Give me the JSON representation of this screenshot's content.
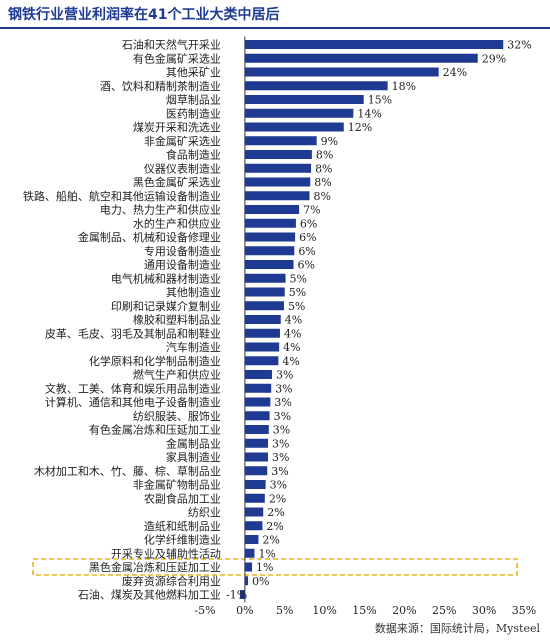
{
  "title": "钢铁行业营业利润率在41个工业大类中居后",
  "source": "数据来源：国际统计局，Mysteel",
  "colors": {
    "bar": "#1f3a93",
    "title": "#1f3a93",
    "highlight": "#e8b422"
  },
  "chart_data": {
    "type": "bar",
    "orientation": "horizontal",
    "title": "钢铁行业营业利润率在41个工业大类中居后",
    "xlabel": "",
    "ylabel": "",
    "xlim": [
      -5,
      35
    ],
    "xticks": [
      "-5%",
      "0%",
      "5%",
      "10%",
      "15%",
      "20%",
      "25%",
      "30%",
      "35%"
    ],
    "grid": false,
    "highlighted_category": "黑色金属冶炼和压延加工业",
    "categories": [
      "石油和天然气开采业",
      "有色金属矿采选业",
      "其他采矿业",
      "酒、饮料和精制茶制造业",
      "烟草制品业",
      "医药制造业",
      "煤炭开采和洗选业",
      "非金属矿采选业",
      "食品制造业",
      "仪器仪表制造业",
      "黑色金属矿采选业",
      "铁路、船舶、航空和其他运输设备制造业",
      "电力、热力生产和供应业",
      "水的生产和供应业",
      "金属制品、机械和设备修理业",
      "专用设备制造业",
      "通用设备制造业",
      "电气机械和器材制造业",
      "其他制造业",
      "印刷和记录媒介复制业",
      "橡胶和塑料制品业",
      "皮革、毛皮、羽毛及其制品和制鞋业",
      "汽车制造业",
      "化学原料和化学制品制造业",
      "燃气生产和供应业",
      "文教、工美、体育和娱乐用品制造业",
      "计算机、通信和其他电子设备制造业",
      "纺织服装、服饰业",
      "有色金属冶炼和压延加工业",
      "金属制品业",
      "家具制造业",
      "木材加工和木、竹、藤、棕、草制品业",
      "非金属矿物制品业",
      "农副食品加工业",
      "纺织业",
      "造纸和纸制品业",
      "化学纤维制造业",
      "开采专业及辅助性活动",
      "黑色金属冶炼和压延加工业",
      "废弃资源综合利用业",
      "石油、煤炭及其他燃料加工业"
    ],
    "values": [
      32.4,
      29.2,
      24.3,
      17.9,
      14.9,
      13.6,
      12.4,
      9.0,
      8.4,
      8.3,
      8.2,
      8.1,
      6.8,
      6.4,
      6.3,
      6.2,
      6.1,
      5.1,
      5.0,
      4.9,
      4.5,
      4.4,
      4.3,
      4.2,
      3.4,
      3.3,
      3.2,
      3.1,
      3.0,
      2.9,
      2.9,
      2.8,
      2.6,
      2.5,
      2.3,
      2.2,
      1.7,
      1.2,
      0.9,
      0.4,
      -0.6
    ],
    "value_labels": [
      "32%",
      "29%",
      "24%",
      "18%",
      "15%",
      "14%",
      "12%",
      "9%",
      "8%",
      "8%",
      "8%",
      "8%",
      "7%",
      "6%",
      "6%",
      "6%",
      "6%",
      "5%",
      "5%",
      "5%",
      "4%",
      "4%",
      "4%",
      "4%",
      "3%",
      "3%",
      "3%",
      "3%",
      "3%",
      "3%",
      "3%",
      "3%",
      "3%",
      "2%",
      "2%",
      "2%",
      "2%",
      "1%",
      "1%",
      "0%",
      "-1%"
    ]
  }
}
